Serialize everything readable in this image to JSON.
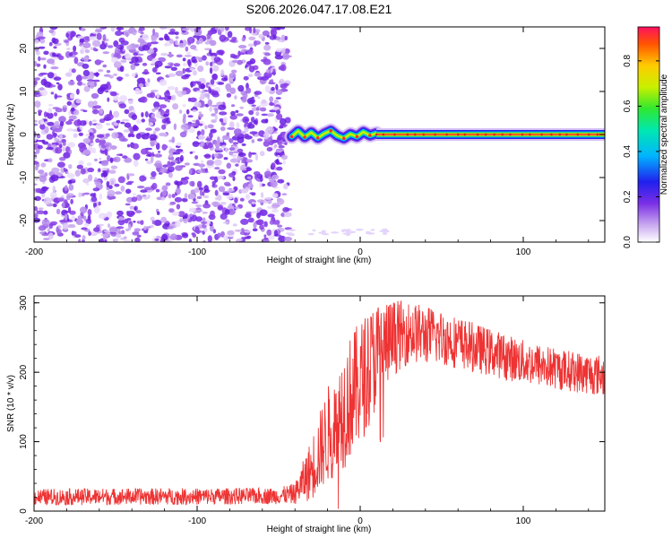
{
  "title": "S206.2026.047.17.08.E21",
  "chart_data": [
    {
      "type": "heatmap",
      "xlabel": "Height of straight line (km)",
      "ylabel": "Frequency (Hz)",
      "xlim": [
        -200,
        150
      ],
      "ylim": [
        -25,
        25
      ],
      "xticks": [
        -200,
        -100,
        0,
        100
      ],
      "yticks": [
        -20,
        -10,
        0,
        10,
        20
      ],
      "noise_region_x": [
        -200,
        -44
      ],
      "signal": {
        "wavy_segment": [
          {
            "x": -42,
            "y": -0.5
          },
          {
            "x": -38,
            "y": 0.8
          },
          {
            "x": -34,
            "y": -0.6
          },
          {
            "x": -30,
            "y": 0.5
          },
          {
            "x": -26,
            "y": -0.8
          },
          {
            "x": -22,
            "y": 0.2
          },
          {
            "x": -18,
            "y": 0.9
          },
          {
            "x": -14,
            "y": -0.3
          },
          {
            "x": -10,
            "y": -0.9
          },
          {
            "x": -6,
            "y": 0.1
          },
          {
            "x": -2,
            "y": -0.5
          },
          {
            "x": 2,
            "y": 0.6
          },
          {
            "x": 6,
            "y": -0.2
          },
          {
            "x": 10,
            "y": 0.3
          }
        ],
        "steady_segment": {
          "x_start": 10,
          "x_end": 150,
          "frequency": 0
        }
      },
      "colorbar": {
        "label": "Normalized spectral amplitude",
        "range": [
          0.0,
          0.95
        ],
        "ticks": [
          "0.0",
          "0.2",
          "0.4",
          "0.6",
          "0.8"
        ]
      }
    },
    {
      "type": "line",
      "xlabel": "Height of straight line (km)",
      "ylabel": "SNR (10 * v/v)",
      "xlim": [
        -200,
        150
      ],
      "ylim": [
        0,
        310
      ],
      "xticks": [
        -200,
        -100,
        0,
        100
      ],
      "yticks": [
        0,
        100,
        200,
        300
      ],
      "series": [
        {
          "color": "#ee3333",
          "envelope": [
            {
              "x": -200,
              "mean": 20,
              "spread": 12
            },
            {
              "x": -150,
              "mean": 21,
              "spread": 12
            },
            {
              "x": -100,
              "mean": 21,
              "spread": 12
            },
            {
              "x": -50,
              "mean": 22,
              "spread": 12
            },
            {
              "x": -40,
              "mean": 25,
              "spread": 15
            },
            {
              "x": -30,
              "mean": 60,
              "spread": 45
            },
            {
              "x": -20,
              "mean": 110,
              "spread": 70
            },
            {
              "x": -10,
              "mean": 150,
              "spread": 90
            },
            {
              "x": 0,
              "mean": 185,
              "spread": 90
            },
            {
              "x": 10,
              "mean": 225,
              "spread": 80
            },
            {
              "x": 20,
              "mean": 250,
              "spread": 55
            },
            {
              "x": 30,
              "mean": 258,
              "spread": 45
            },
            {
              "x": 50,
              "mean": 250,
              "spread": 40
            },
            {
              "x": 75,
              "mean": 232,
              "spread": 35
            },
            {
              "x": 100,
              "mean": 215,
              "spread": 32
            },
            {
              "x": 125,
              "mean": 203,
              "spread": 30
            },
            {
              "x": 150,
              "mean": 195,
              "spread": 30
            }
          ]
        }
      ]
    }
  ]
}
